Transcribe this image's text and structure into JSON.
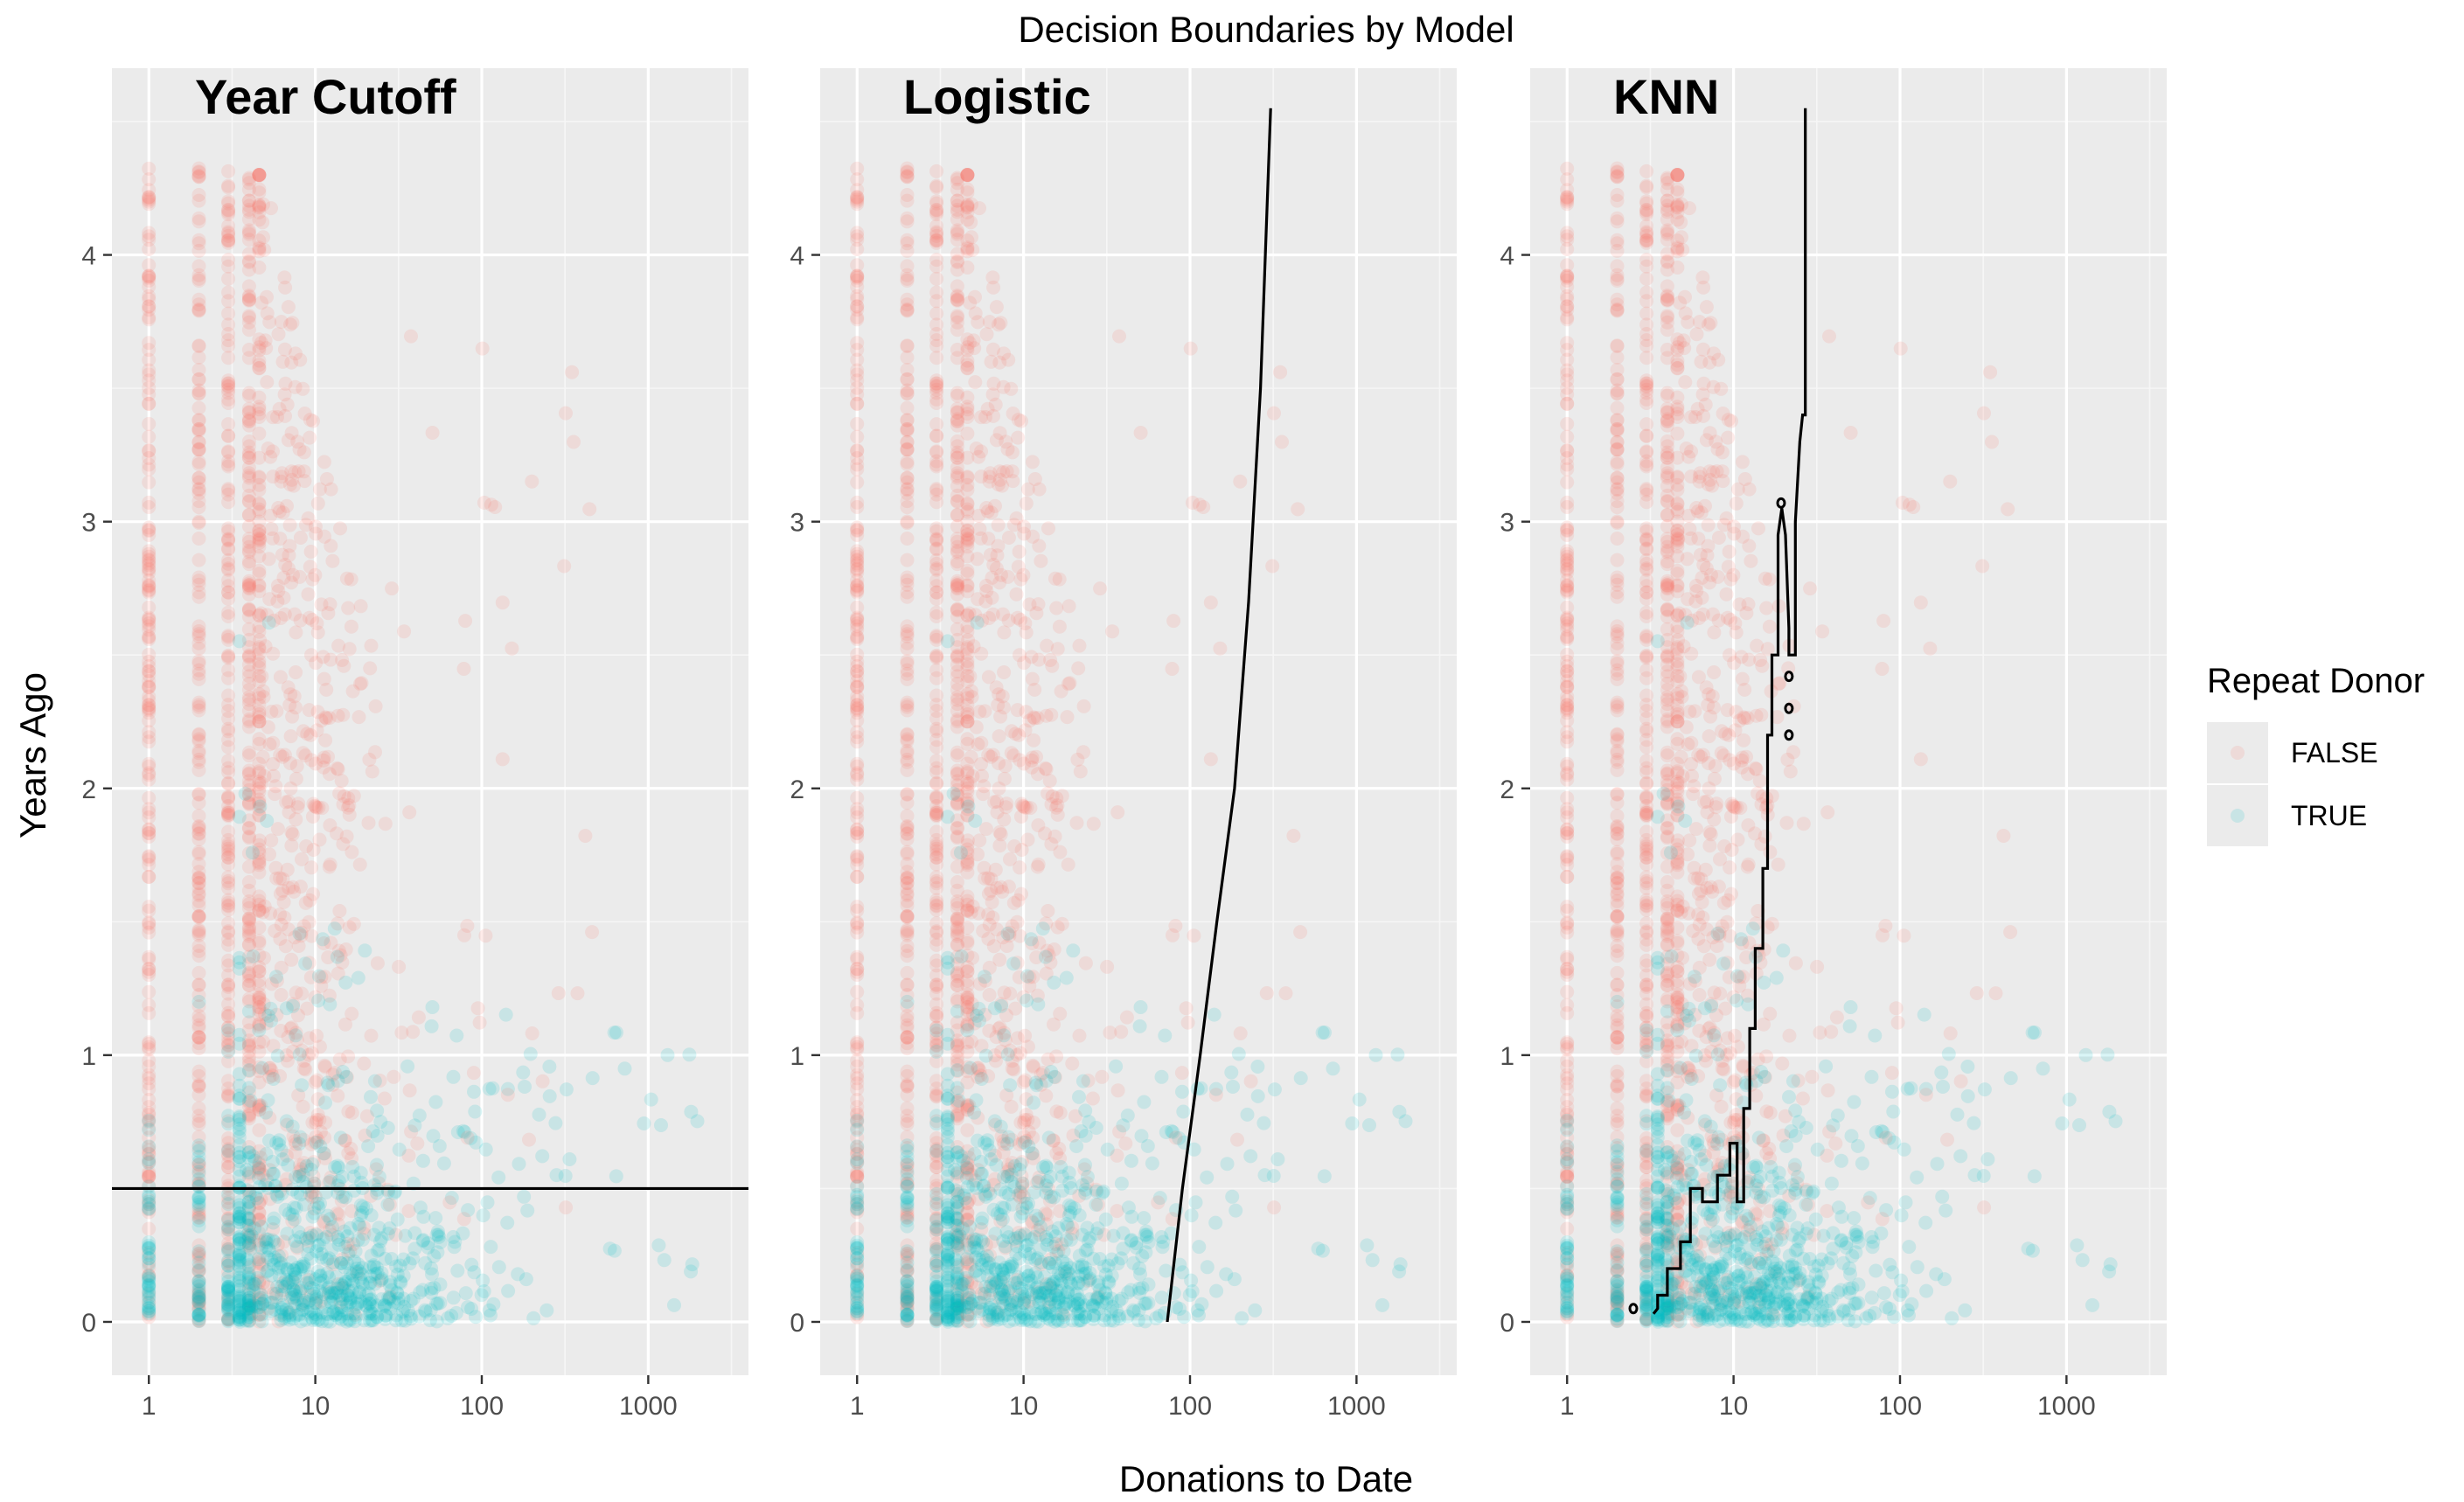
{
  "chart_data": {
    "type": "scatter",
    "title": "Decision Boundaries by Model",
    "xlabel": "Donations to Date",
    "ylabel": "Years Ago",
    "x_scale": "log10",
    "xlim": [
      0.6,
      4000
    ],
    "ylim": [
      -0.2,
      4.7
    ],
    "x_ticks": [
      {
        "value": 1,
        "label": "1"
      },
      {
        "value": 10,
        "label": "10"
      },
      {
        "value": 100,
        "label": "100"
      },
      {
        "value": 1000,
        "label": "1000"
      }
    ],
    "y_ticks": [
      {
        "value": 0,
        "label": "0"
      },
      {
        "value": 1,
        "label": "1"
      },
      {
        "value": 2,
        "label": "2"
      },
      {
        "value": 3,
        "label": "3"
      },
      {
        "value": 4,
        "label": "4"
      }
    ],
    "grid": true,
    "legend": {
      "title": "Repeat Donor",
      "placement": "right",
      "entries": [
        {
          "label": "FALSE",
          "color": "#F8766D"
        },
        {
          "label": "TRUE",
          "color": "#00BFC4"
        }
      ]
    },
    "point_alpha": 0.15,
    "panels": [
      {
        "title": "Year Cutoff",
        "boundary": {
          "kind": "hline",
          "y": 0.5
        }
      },
      {
        "title": "Logistic",
        "boundary": {
          "kind": "path",
          "points": [
            [
              73,
              0
            ],
            [
              90,
              0.5
            ],
            [
              115,
              1.0
            ],
            [
              145,
              1.5
            ],
            [
              185,
              2.0
            ],
            [
              225,
              2.7
            ],
            [
              265,
              3.5
            ],
            [
              305,
              4.55
            ]
          ]
        }
      },
      {
        "title": "KNN",
        "boundary": {
          "kind": "path",
          "points": [
            [
              3.3,
              0.03
            ],
            [
              3.5,
              0.05
            ],
            [
              3.5,
              0.1
            ],
            [
              4.0,
              0.1
            ],
            [
              4.0,
              0.2
            ],
            [
              4.8,
              0.2
            ],
            [
              4.8,
              0.3
            ],
            [
              5.5,
              0.3
            ],
            [
              5.5,
              0.5
            ],
            [
              6.5,
              0.5
            ],
            [
              6.5,
              0.45
            ],
            [
              8.0,
              0.45
            ],
            [
              8.0,
              0.55
            ],
            [
              9.5,
              0.55
            ],
            [
              9.5,
              0.67
            ],
            [
              10.5,
              0.67
            ],
            [
              10.5,
              0.45
            ],
            [
              11.5,
              0.45
            ],
            [
              11.5,
              0.8
            ],
            [
              12.5,
              0.8
            ],
            [
              12.5,
              1.1
            ],
            [
              13.5,
              1.1
            ],
            [
              13.5,
              1.4
            ],
            [
              15.0,
              1.4
            ],
            [
              15.0,
              1.7
            ],
            [
              16.0,
              1.7
            ],
            [
              16.0,
              2.2
            ],
            [
              17.0,
              2.2
            ],
            [
              17.0,
              2.5
            ],
            [
              18.5,
              2.5
            ],
            [
              18.5,
              2.95
            ],
            [
              19.5,
              3.05
            ],
            [
              20.5,
              2.95
            ],
            [
              21.5,
              2.6
            ],
            [
              21.5,
              2.5
            ],
            [
              23.5,
              2.5
            ],
            [
              23.5,
              3.0
            ],
            [
              25.0,
              3.3
            ],
            [
              26.0,
              3.4
            ],
            [
              27.0,
              3.4
            ],
            [
              27.0,
              4.55
            ]
          ]
        },
        "islands": [
          [
            2.5,
            0.05
          ],
          [
            19.3,
            3.07
          ],
          [
            21.5,
            2.42
          ],
          [
            21.5,
            2.3
          ],
          [
            21.5,
            2.2
          ]
        ]
      }
    ]
  }
}
